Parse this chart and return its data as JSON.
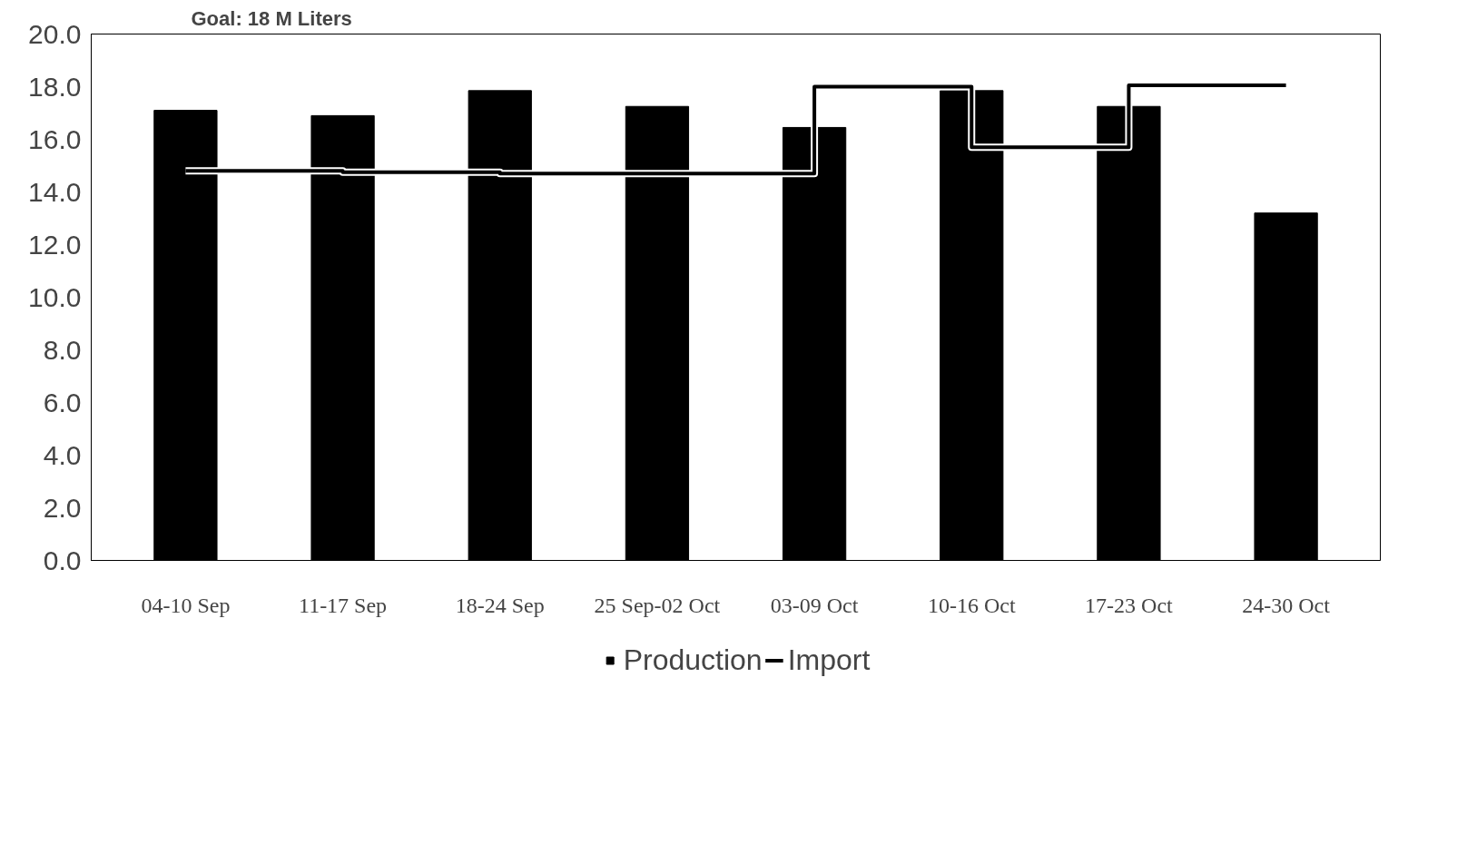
{
  "chart_data": {
    "type": "bar",
    "title": "Goal: 18 M Liters",
    "categories": [
      "04-10 Sep",
      "11-17 Sep",
      "18-24 Sep",
      "25 Sep-02 Oct",
      "03-09 Oct",
      "10-16 Oct",
      "17-23 Oct",
      "24-30 Oct"
    ],
    "series": [
      {
        "name": "Production",
        "color": "#000000",
        "values": [
          17.1,
          16.9,
          17.85,
          17.25,
          16.45,
          17.85,
          17.25,
          13.2
        ]
      },
      {
        "name": "Import",
        "type": "step",
        "color": "#000000",
        "values": [
          14.8,
          14.75,
          14.7,
          14.7,
          18.0,
          15.7,
          18.05,
          18.05
        ]
      }
    ],
    "ylim": [
      0,
      20
    ],
    "yticks": [
      {
        "value": 0,
        "label": "0.0"
      },
      {
        "value": 2,
        "label": "2.0"
      },
      {
        "value": 4,
        "label": "4.0"
      },
      {
        "value": 6,
        "label": "6.0"
      },
      {
        "value": 8,
        "label": "8.0"
      },
      {
        "value": 10,
        "label": "10.0"
      },
      {
        "value": 12,
        "label": "12.0"
      },
      {
        "value": 14,
        "label": "14.0"
      },
      {
        "value": 16,
        "label": "16.0"
      },
      {
        "value": 18,
        "label": "18.0"
      },
      {
        "value": 20,
        "label": "20.0"
      }
    ],
    "grid": false,
    "legend": "bottom"
  }
}
